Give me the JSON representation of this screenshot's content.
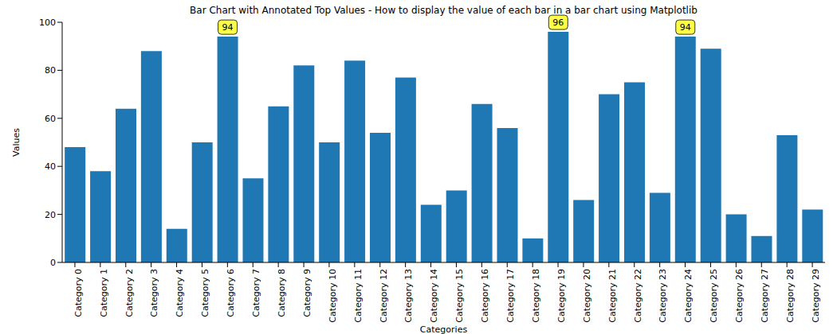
{
  "chart_data": {
    "type": "bar",
    "title": "Bar Chart with Annotated Top Values - How to display the value of each bar in a bar chart using Matplotlib",
    "x_label": "Categories",
    "y_label": "Values",
    "categories": [
      "Category 0",
      "Category 1",
      "Category 2",
      "Category 3",
      "Category 4",
      "Category 5",
      "Category 6",
      "Category 7",
      "Category 8",
      "Category 9",
      "Category 10",
      "Category 11",
      "Category 12",
      "Category 13",
      "Category 14",
      "Category 15",
      "Category 16",
      "Category 17",
      "Category 18",
      "Category 19",
      "Category 20",
      "Category 21",
      "Category 22",
      "Category 23",
      "Category 24",
      "Category 25",
      "Category 26",
      "Category 27",
      "Category 28",
      "Category 29"
    ],
    "values": [
      48,
      38,
      64,
      88,
      14,
      50,
      94,
      35,
      65,
      82,
      50,
      84,
      54,
      77,
      24,
      30,
      66,
      56,
      10,
      96,
      26,
      70,
      75,
      29,
      94,
      89,
      20,
      11,
      53,
      22
    ],
    "color": "#1f77b4",
    "ylim": [
      0,
      100
    ],
    "yticks": [
      0,
      20,
      40,
      60,
      80,
      100
    ],
    "grid": false,
    "annotations": [
      {
        "category": "Category 6",
        "label": "94"
      },
      {
        "category": "Category 19",
        "label": "96"
      },
      {
        "category": "Category 24",
        "label": "94"
      }
    ]
  }
}
